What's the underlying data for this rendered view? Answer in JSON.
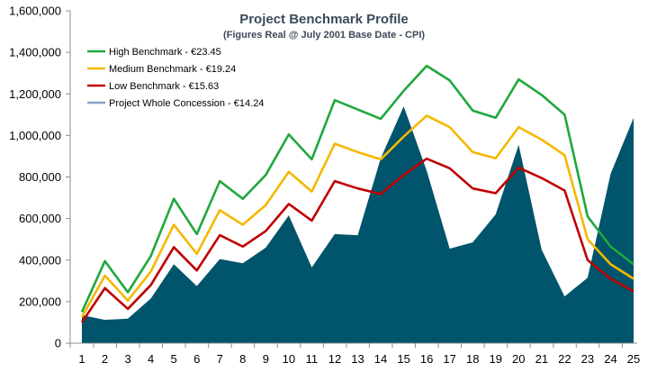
{
  "chart_data": {
    "type": "area+line",
    "title": "Project Benchmark Profile",
    "subtitle": "(Figures Real @ July 2001 Base Date - CPI)",
    "xlabel": "",
    "ylabel": "",
    "x": [
      1,
      2,
      3,
      4,
      5,
      6,
      7,
      8,
      9,
      10,
      11,
      12,
      13,
      14,
      15,
      16,
      17,
      18,
      19,
      20,
      21,
      22,
      23,
      24,
      25
    ],
    "ylim": [
      0,
      1600000
    ],
    "yticks": [
      0,
      200000,
      400000,
      600000,
      800000,
      1000000,
      1200000,
      1400000,
      1600000
    ],
    "ytick_labels": [
      "0",
      "200,000",
      "400,000",
      "600,000",
      "800,000",
      "1,000,000",
      "1,200,000",
      "1,400,000",
      "1,600,000"
    ],
    "grid": false,
    "legend_position": "top-left",
    "series": [
      {
        "name": "High Benchmark - €23.45",
        "kind": "line",
        "color": "#1fa83c",
        "values": [
          150000,
          395000,
          245000,
          420000,
          695000,
          525000,
          780000,
          695000,
          810000,
          1005000,
          885000,
          1170000,
          1125000,
          1080000,
          1215000,
          1335000,
          1265000,
          1120000,
          1085000,
          1270000,
          1195000,
          1100000,
          610000,
          465000,
          380000
        ]
      },
      {
        "name": "Medium Benchmark - €19.24",
        "kind": "line",
        "color": "#f5b800",
        "values": [
          125000,
          325000,
          205000,
          345000,
          570000,
          430000,
          640000,
          570000,
          665000,
          825000,
          730000,
          960000,
          920000,
          885000,
          995000,
          1095000,
          1040000,
          920000,
          890000,
          1040000,
          980000,
          905000,
          500000,
          380000,
          310000
        ]
      },
      {
        "name": "Low Benchmark - €15.63",
        "kind": "line",
        "color": "#c00000",
        "values": [
          100000,
          265000,
          165000,
          280000,
          462000,
          350000,
          520000,
          465000,
          540000,
          670000,
          590000,
          780000,
          745000,
          718000,
          810000,
          888000,
          842000,
          745000,
          722000,
          845000,
          795000,
          735000,
          400000,
          310000,
          250000
        ]
      },
      {
        "name": "Project Whole Concession - €14.24",
        "kind": "area",
        "color": "#00546b",
        "legend_color": "#8fa3c8",
        "values": [
          135000,
          112000,
          118000,
          215000,
          380000,
          275000,
          405000,
          385000,
          460000,
          615000,
          365000,
          525000,
          520000,
          890000,
          1140000,
          830000,
          455000,
          485000,
          620000,
          955000,
          450000,
          225000,
          315000,
          815000,
          1085000
        ]
      }
    ]
  }
}
